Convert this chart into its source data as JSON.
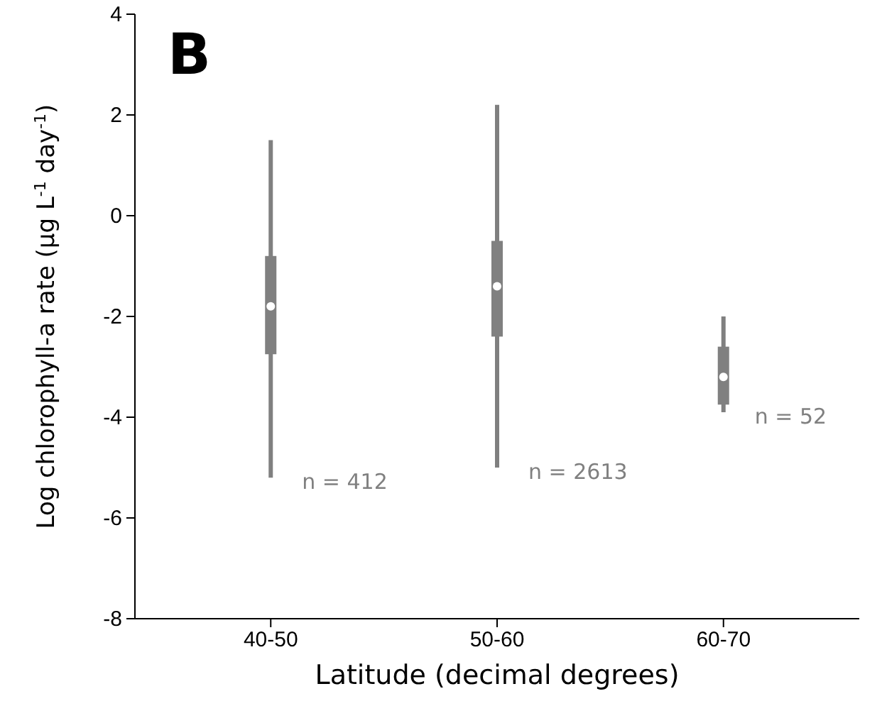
{
  "chart_data": {
    "type": "box",
    "title": "B",
    "xlabel": "Latitude (decimal degrees)",
    "ylabel": "Log chlorophyll-a rate (µg L$^{-1}$ day$^{-1}$)",
    "categories": [
      "40-50",
      "50-60",
      "60-70"
    ],
    "boxes": [
      {
        "low": -5.2,
        "q1": -2.75,
        "median": -1.8,
        "q3": -0.8,
        "high": 1.5
      },
      {
        "low": -5.0,
        "q1": -2.4,
        "median": -1.4,
        "q3": -0.5,
        "high": 2.2
      },
      {
        "low": -3.9,
        "q1": -3.75,
        "median": -3.2,
        "q3": -2.6,
        "high": -2.0
      }
    ],
    "color": "#808080",
    "ylim": [
      -8,
      4
    ],
    "yticks": [
      -8,
      -6,
      -4,
      -2,
      0,
      2,
      4
    ],
    "annotations": [
      "n = 412",
      "n = 2613",
      "n = 52"
    ]
  }
}
